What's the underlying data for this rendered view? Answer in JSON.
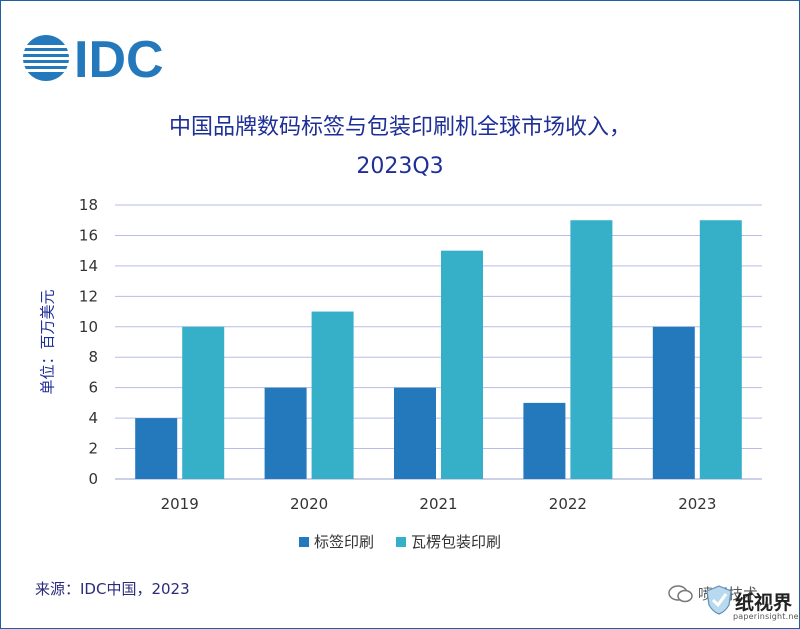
{
  "logo_text": "IDC",
  "colors": {
    "series1": "#2479bd",
    "series2": "#36b0c9",
    "title": "#1e2f97",
    "grid": "#b7bde6"
  },
  "chart_data": {
    "type": "bar",
    "title": "中国品牌数码标签与包装印刷机全球市场收入，",
    "subtitle": "2023Q3",
    "ylabel": "单位：百万美元",
    "xlabel": "",
    "categories": [
      "2019",
      "2020",
      "2021",
      "2022",
      "2023"
    ],
    "series": [
      {
        "name": "标签印刷",
        "values": [
          4,
          6,
          6,
          5,
          10
        ]
      },
      {
        "name": "瓦楞包装印刷",
        "values": [
          10,
          11,
          15,
          17,
          17
        ]
      }
    ],
    "ylim": [
      0,
      18
    ],
    "yticks": [
      "0",
      "2",
      "4",
      "6",
      "8",
      "10",
      "12",
      "14",
      "16",
      "18"
    ],
    "grid": true,
    "legend_position": "bottom"
  },
  "source": "来源：IDC中国，2023",
  "watermark": {
    "wechat": "喷印技术",
    "brand": "纸视界",
    "url": "paperinsight.net"
  }
}
